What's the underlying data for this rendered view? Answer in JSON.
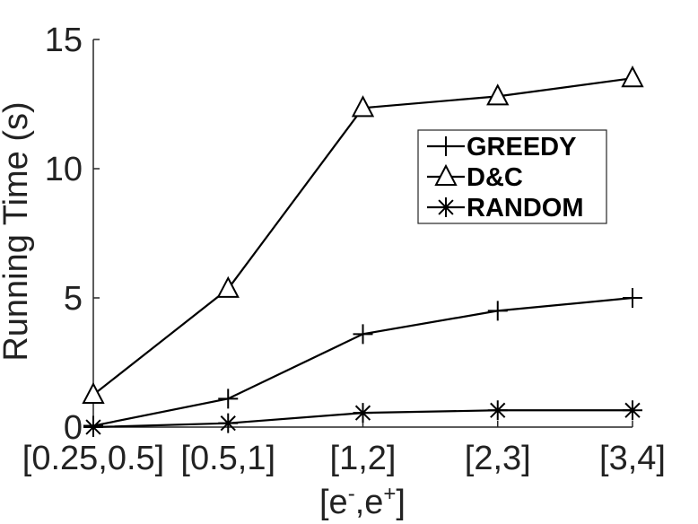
{
  "chart_data": {
    "type": "line",
    "categories": [
      "[0.25,0.5]",
      "[0.5,1]",
      "[1,2]",
      "[2,3]",
      "[3,4]"
    ],
    "series": [
      {
        "name": "GREEDY",
        "marker": "plus",
        "values": [
          0.05,
          1.1,
          3.6,
          4.5,
          5.0
        ]
      },
      {
        "name": "D&C",
        "marker": "triangle",
        "values": [
          1.25,
          5.35,
          12.35,
          12.8,
          13.5
        ]
      },
      {
        "name": "RANDOM",
        "marker": "asterisk",
        "values": [
          0.0,
          0.15,
          0.55,
          0.65,
          0.65
        ]
      }
    ],
    "xlabel_base": "[e",
    "xlabel_sup1": "-",
    "xlabel_mid": ",e",
    "xlabel_sup2": "+",
    "xlabel_end": "]",
    "ylabel": "Running Time (s)",
    "ylim": [
      0,
      15
    ],
    "yticks": [
      0,
      5,
      10,
      15
    ],
    "grid": false,
    "legend_position": "upper-right-inner",
    "line_color": "#000000"
  }
}
